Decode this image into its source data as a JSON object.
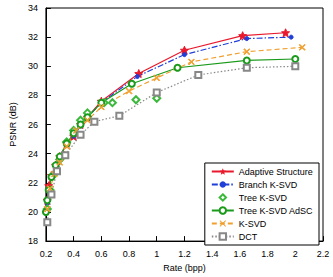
{
  "chart_data": {
    "type": "line",
    "x_label": "Rate (bpp)",
    "y_label": "PSNR (dB)",
    "xlim": [
      0.2,
      2.2
    ],
    "xticks": [
      0.2,
      0.4,
      0.6,
      0.8,
      1,
      1.2,
      1.4,
      1.6,
      1.8,
      2,
      2.2
    ],
    "ylim": [
      18,
      34
    ],
    "yticks": [
      18,
      20,
      22,
      24,
      26,
      28,
      30,
      32,
      34
    ],
    "grid": false,
    "legend": "lower right",
    "series": [
      {
        "name": "Adaptive Structure",
        "color": "#e8192c",
        "marker": "star",
        "line_style": "solid",
        "x": [
          0.21,
          0.22,
          0.24,
          0.27,
          0.3,
          0.35,
          0.4,
          0.45,
          0.5,
          0.6,
          0.87,
          1.2,
          1.62,
          1.93
        ],
        "values": [
          20.8,
          21.8,
          22.5,
          23.2,
          23.8,
          24.7,
          25.2,
          26.0,
          26.5,
          27.6,
          29.5,
          31.1,
          32.1,
          32.3
        ]
      },
      {
        "name": "Branch K-SVD",
        "color": "#1f3fd8",
        "marker": "dot",
        "line_style": "dashdot",
        "x": [
          0.21,
          0.22,
          0.24,
          0.27,
          0.3,
          0.35,
          0.4,
          0.45,
          0.5,
          0.6,
          0.86,
          1.2,
          1.65,
          1.97
        ],
        "values": [
          20.6,
          21.6,
          22.4,
          23.1,
          23.7,
          24.6,
          25.2,
          25.9,
          26.5,
          27.5,
          29.3,
          30.8,
          31.9,
          32.0
        ]
      },
      {
        "name": "Tree K-SVD",
        "color": "#3cb83c",
        "marker": "diamond",
        "line_style": "none",
        "x": [
          0.21,
          0.23,
          0.26,
          0.3,
          0.35,
          0.4,
          0.45,
          0.5,
          0.62,
          0.68,
          0.85,
          1.0
        ],
        "values": [
          20.2,
          21.5,
          22.6,
          23.6,
          24.8,
          25.6,
          26.3,
          26.8,
          27.5,
          27.5,
          27.7,
          27.8
        ]
      },
      {
        "name": "Tree K-SVD AdSC",
        "color": "#1a9a1a",
        "marker": "circle",
        "line_style": "solid",
        "x": [
          0.2,
          0.21,
          0.22,
          0.24,
          0.27,
          0.3,
          0.35,
          0.4,
          0.45,
          0.5,
          0.6,
          0.82,
          1.15,
          1.65,
          2.0
        ],
        "values": [
          20.0,
          20.8,
          21.5,
          22.4,
          23.2,
          23.8,
          24.7,
          25.4,
          26.0,
          26.5,
          27.5,
          28.8,
          29.9,
          30.4,
          30.5
        ]
      },
      {
        "name": "K-SVD",
        "color": "#f0a030",
        "marker": "x",
        "line_style": "dashed",
        "x": [
          0.21,
          0.23,
          0.26,
          0.3,
          0.35,
          0.42,
          0.5,
          0.6,
          0.8,
          1.0,
          1.25,
          1.65,
          2.05
        ],
        "values": [
          20.2,
          21.6,
          22.6,
          23.4,
          24.5,
          25.6,
          26.3,
          27.2,
          28.3,
          29.2,
          30.3,
          31.0,
          31.3
        ]
      },
      {
        "name": "DCT",
        "color": "#888888",
        "marker": "square",
        "line_style": "dotted",
        "x": [
          0.21,
          0.24,
          0.28,
          0.34,
          0.45,
          0.55,
          0.73,
          1.0,
          1.3,
          1.65,
          2.0
        ],
        "values": [
          19.3,
          21.2,
          22.8,
          23.9,
          25.3,
          26.2,
          26.6,
          28.2,
          29.4,
          29.9,
          30.0
        ]
      }
    ]
  }
}
